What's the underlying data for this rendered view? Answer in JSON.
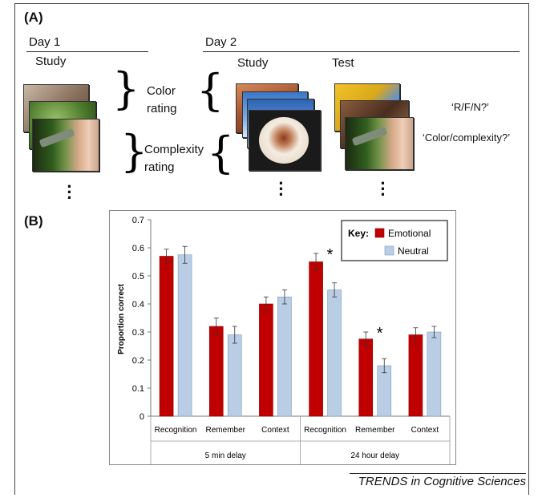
{
  "panel_a": {
    "label": "(A)",
    "day1": {
      "title": "Day 1",
      "study": "Study"
    },
    "day2": {
      "title": "Day 2",
      "study": "Study",
      "test": "Test"
    },
    "color_rating": [
      "Color",
      "rating"
    ],
    "complexity_rating": [
      "Complexity",
      "rating"
    ],
    "question_rfn": "‘R/F/N?’",
    "question_color_complexity": "‘Color/complexity?’"
  },
  "panel_b": {
    "label": "(B)"
  },
  "footer": "TRENDS in Cognitive Sciences",
  "chart_data": {
    "type": "bar",
    "ylabel": "Proportion correct",
    "ylim": [
      0,
      0.7
    ],
    "yticks": [
      "0",
      "0.1",
      "0.2",
      "0.3",
      "0.4",
      "0.5",
      "0.6",
      "0.7"
    ],
    "categories": [
      "Recognition",
      "Remember",
      "Context",
      "Recognition",
      "Remember",
      "Context"
    ],
    "groups": [
      {
        "label": "5 min delay",
        "span": [
          0,
          2
        ]
      },
      {
        "label": "24 hour delay",
        "span": [
          3,
          5
        ]
      }
    ],
    "legend": {
      "title": "Key:",
      "placement": "top-right"
    },
    "series": [
      {
        "name": "Emotional",
        "color": "#c00000",
        "values": [
          0.57,
          0.32,
          0.4,
          0.55,
          0.275,
          0.29
        ],
        "errors": [
          0.025,
          0.03,
          0.025,
          0.03,
          0.025,
          0.025
        ]
      },
      {
        "name": "Neutral",
        "color": "#b9cde5",
        "values": [
          0.575,
          0.29,
          0.425,
          0.45,
          0.18,
          0.3
        ],
        "errors": [
          0.03,
          0.03,
          0.025,
          0.025,
          0.025,
          0.02
        ]
      }
    ],
    "significance": {
      "marker": "*",
      "categories": [
        3,
        4
      ]
    }
  }
}
